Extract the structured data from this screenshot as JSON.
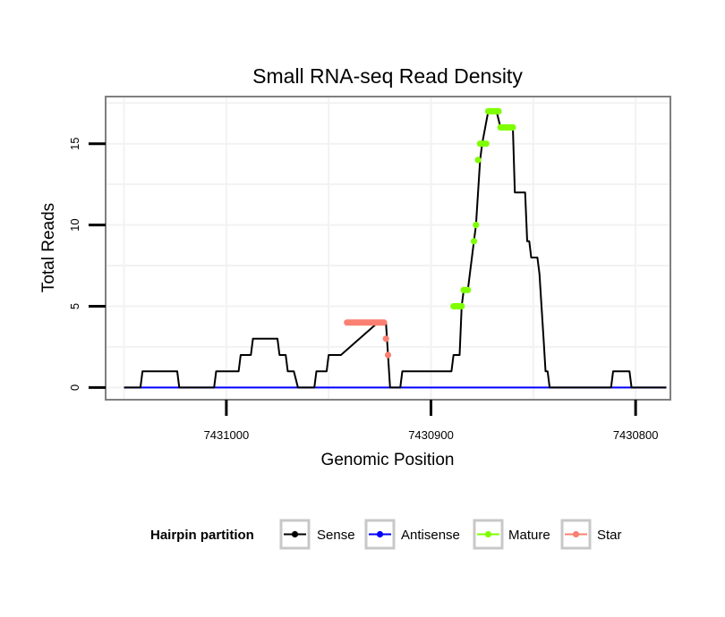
{
  "chart_data": {
    "type": "line",
    "title": "Small RNA-seq Read Density",
    "xlabel": "Genomic Position",
    "ylabel": "Total Reads",
    "x_reversed": true,
    "xlim": [
      7431059,
      7430783
    ],
    "ylim": [
      -0.75,
      17.9
    ],
    "x_ticks": [
      {
        "value": 7431000,
        "label": "7431000"
      },
      {
        "value": 7430900,
        "label": "7430900"
      },
      {
        "value": 7430800,
        "label": "7430800"
      }
    ],
    "y_ticks": [
      {
        "value": 0,
        "label": "0"
      },
      {
        "value": 5,
        "label": "5"
      },
      {
        "value": 10,
        "label": "10"
      },
      {
        "value": 15,
        "label": "15"
      }
    ],
    "grid": true,
    "legend": {
      "title": "Hairpin partition",
      "position": "bottom",
      "entries": [
        {
          "name": "Sense",
          "color": "#000000"
        },
        {
          "name": "Antisense",
          "color": "#0000ff"
        },
        {
          "name": "Mature",
          "color": "#7fff00"
        },
        {
          "name": "Star",
          "color": "#fa8072"
        }
      ]
    },
    "series": [
      {
        "name": "Sense",
        "color": "#000000",
        "x": [
          7431050,
          7431042,
          7431041,
          7431024,
          7431023,
          7431006,
          7431005,
          7431003,
          7430994,
          7430993,
          7430988,
          7430987,
          7430975,
          7430974,
          7430971,
          7430970,
          7430967,
          7430965,
          7430958,
          7430957,
          7430956,
          7430951,
          7430950,
          7430944,
          7430926,
          7430922,
          7430921,
          7430920,
          7430915,
          7430914,
          7430910,
          7430890,
          7430889,
          7430886,
          7430885,
          7430884,
          7430882,
          7430879,
          7430878,
          7430876,
          7430875,
          7430872,
          7430868,
          7430866,
          7430865,
          7430860,
          7430859,
          7430858,
          7430854,
          7430853,
          7430852,
          7430851,
          7430850,
          7430849,
          7430848,
          7430847,
          7430846,
          7430845,
          7430844,
          7430843,
          7430842,
          7430833,
          7430832,
          7430812,
          7430811,
          7430803,
          7430802,
          7430785
        ],
        "y": [
          0,
          0,
          1,
          1,
          0,
          0,
          1,
          1,
          1,
          2,
          2,
          3,
          3,
          2,
          2,
          1,
          1,
          0,
          0,
          0,
          1,
          1,
          2,
          2,
          4,
          4,
          2,
          0,
          0,
          1,
          1,
          1,
          2,
          2,
          5,
          6,
          6,
          9,
          10,
          14,
          15,
          17,
          17,
          16,
          16,
          16,
          12,
          12,
          12,
          9,
          9,
          8,
          8,
          8,
          8,
          7,
          5,
          3,
          1,
          1,
          0,
          0,
          0,
          0,
          1,
          1,
          0,
          0
        ]
      },
      {
        "name": "Antisense",
        "color": "#0000ff",
        "x": [
          7431050,
          7430785
        ],
        "y": [
          0,
          0
        ]
      },
      {
        "name": "Mature",
        "color": "#7fff00",
        "x": [
          7430889,
          7430888,
          7430887,
          7430886,
          7430885,
          7430884,
          7430883,
          7430882,
          7430879,
          7430878,
          7430877,
          7430876,
          7430875,
          7430874,
          7430873,
          7430872,
          7430871,
          7430870,
          7430869,
          7430868,
          7430867,
          7430866,
          7430865,
          7430864,
          7430863,
          7430862,
          7430861,
          7430860
        ],
        "y": [
          5,
          5,
          5,
          5,
          5,
          6,
          6,
          6,
          9,
          10,
          14,
          15,
          15,
          15,
          15,
          17,
          17,
          17,
          17,
          17,
          17,
          16,
          16,
          16,
          16,
          16,
          16,
          16
        ]
      },
      {
        "name": "Star",
        "color": "#fa8072",
        "x": [
          7430941,
          7430940,
          7430939,
          7430938,
          7430937,
          7430936,
          7430935,
          7430934,
          7430933,
          7430932,
          7430931,
          7430930,
          7430929,
          7430928,
          7430927,
          7430926,
          7430925,
          7430924,
          7430923,
          7430922,
          7430921
        ],
        "y": [
          4,
          4,
          4,
          4,
          4,
          4,
          4,
          4,
          4,
          4,
          4,
          4,
          4,
          4,
          4,
          4,
          4,
          4,
          4,
          3,
          2
        ]
      }
    ]
  }
}
